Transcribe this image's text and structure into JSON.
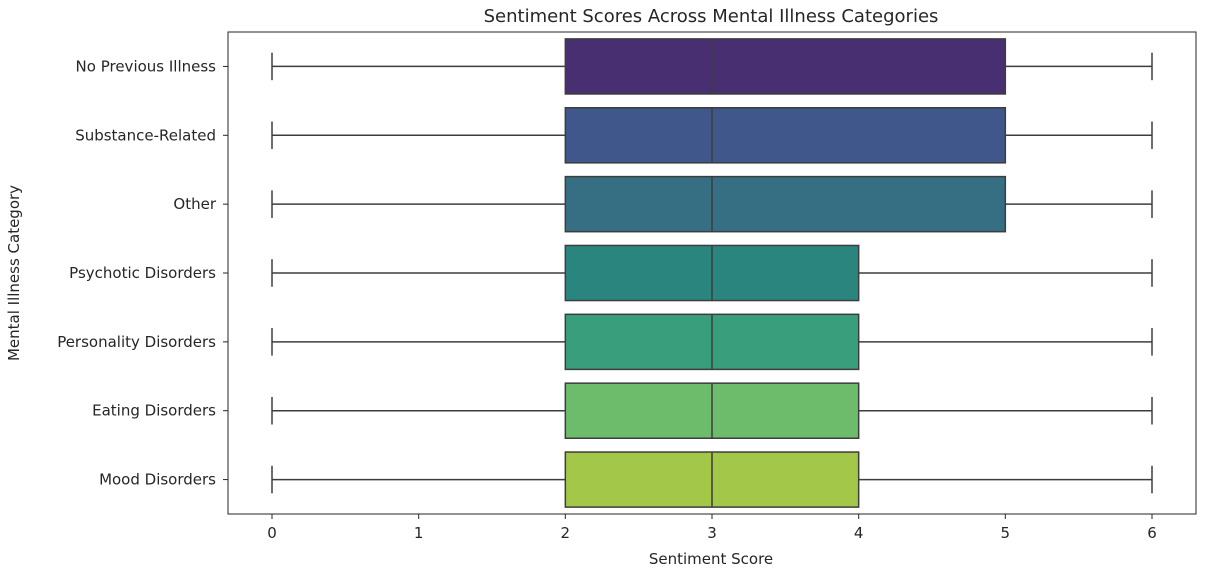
{
  "chart_data": {
    "type": "box",
    "orientation": "horizontal",
    "title": "Sentiment Scores Across Mental Illness Categories",
    "xlabel": "Sentiment Score",
    "ylabel": "Mental Illness Category",
    "xlim": [
      -0.3,
      6.3
    ],
    "xticks": [
      "0",
      "1",
      "2",
      "3",
      "4",
      "5",
      "6"
    ],
    "grid": false,
    "categories": [
      "No Previous Illness",
      "Substance-Related",
      "Other",
      "Psychotic Disorders",
      "Personality Disorders",
      "Eating Disorders",
      "Mood Disorders"
    ],
    "boxes": [
      {
        "min": 0,
        "q1": 2,
        "median": 3,
        "q3": 5,
        "max": 6,
        "color": "#482f71"
      },
      {
        "min": 0,
        "q1": 2,
        "median": 3,
        "q3": 5,
        "max": 6,
        "color": "#40578b"
      },
      {
        "min": 0,
        "q1": 2,
        "median": 3,
        "q3": 5,
        "max": 6,
        "color": "#366f83"
      },
      {
        "min": 0,
        "q1": 2,
        "median": 3,
        "q3": 4,
        "max": 6,
        "color": "#2a857f"
      },
      {
        "min": 0,
        "q1": 2,
        "median": 3,
        "q3": 4,
        "max": 6,
        "color": "#399e7b"
      },
      {
        "min": 0,
        "q1": 2,
        "median": 3,
        "q3": 4,
        "max": 6,
        "color": "#6cbc6c"
      },
      {
        "min": 0,
        "q1": 2,
        "median": 3,
        "q3": 4,
        "max": 6,
        "color": "#a2c749"
      }
    ]
  }
}
